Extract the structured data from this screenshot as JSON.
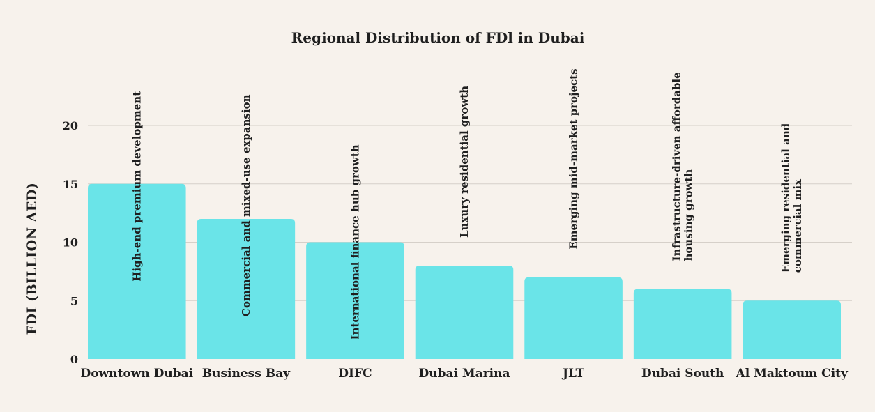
{
  "chart_data": {
    "type": "bar",
    "title": "Regional Distribution of FDl in Dubai",
    "xlabel": "",
    "ylabel": "FDI (BILLION AED)",
    "ylim": [
      0,
      22
    ],
    "yticks": [
      0,
      5,
      10,
      15,
      20
    ],
    "grid": true,
    "categories": [
      "Downtown Dubai",
      "Business Bay",
      "DIFC",
      "Dubai Marina",
      "JLT",
      "Dubai South",
      "Al Maktoum City"
    ],
    "values": [
      15,
      12,
      10,
      8,
      7,
      6,
      5
    ],
    "annotations": [
      [
        "High-end premium development"
      ],
      [
        "Commercial and mixed-use expansion"
      ],
      [
        "International finance hub growth"
      ],
      [
        "Luxury residential growth"
      ],
      [
        "Emerging mid-market projects"
      ],
      [
        "Infrastructure-driven affordable",
        "housing growth"
      ],
      [
        "Emerging residential and",
        "commercial mix"
      ]
    ],
    "colors": {
      "bar": "#6ae4e8",
      "background": "#f7f2ec",
      "grid": "#d6d0c9",
      "text": "#1f1f1f"
    }
  }
}
